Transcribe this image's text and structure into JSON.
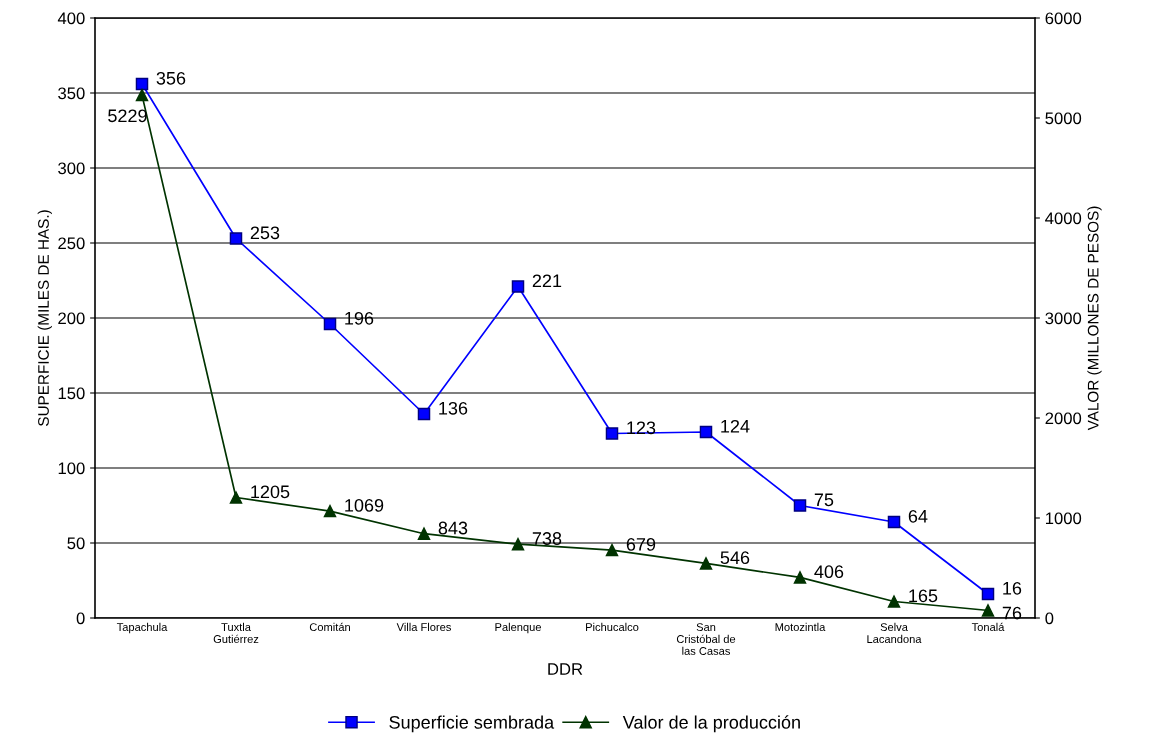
{
  "chart_data": {
    "type": "line",
    "xlabel": "DDR",
    "ylabel": "SUPERFICIE (MILES DE HAS.)",
    "y2label": "VALOR (MILLONES DE PESOS)",
    "categories": [
      "Tapachula",
      "Tuxtla\nGutiérrez",
      "Comitán",
      "Villa Flores",
      "Palenque",
      "Pichucalco",
      "San\nCristóbal de\nlas Casas",
      "Motozintla",
      "Selva\nLacandona",
      "Tonalá"
    ],
    "series": [
      {
        "name": "Superficie sembrada",
        "color": "#0000ff",
        "marker": "square",
        "values": [
          356,
          253,
          196,
          136,
          221,
          123,
          124,
          75,
          64,
          16
        ]
      },
      {
        "name": "Valor de la producción",
        "color": "#003300",
        "marker": "triangle",
        "axis": "y2",
        "values": [
          5229,
          1205,
          1069,
          843,
          738,
          679,
          546,
          406,
          165,
          76
        ]
      }
    ],
    "ylim": [
      0,
      400
    ],
    "yticks": [
      0,
      50,
      100,
      150,
      200,
      250,
      300,
      350,
      400
    ],
    "y2lim": [
      0,
      6000
    ],
    "y2ticks": [
      0,
      1000,
      2000,
      3000,
      4000,
      5000,
      6000
    ],
    "grid": "y",
    "legend": "bottom",
    "data_labels": true
  }
}
